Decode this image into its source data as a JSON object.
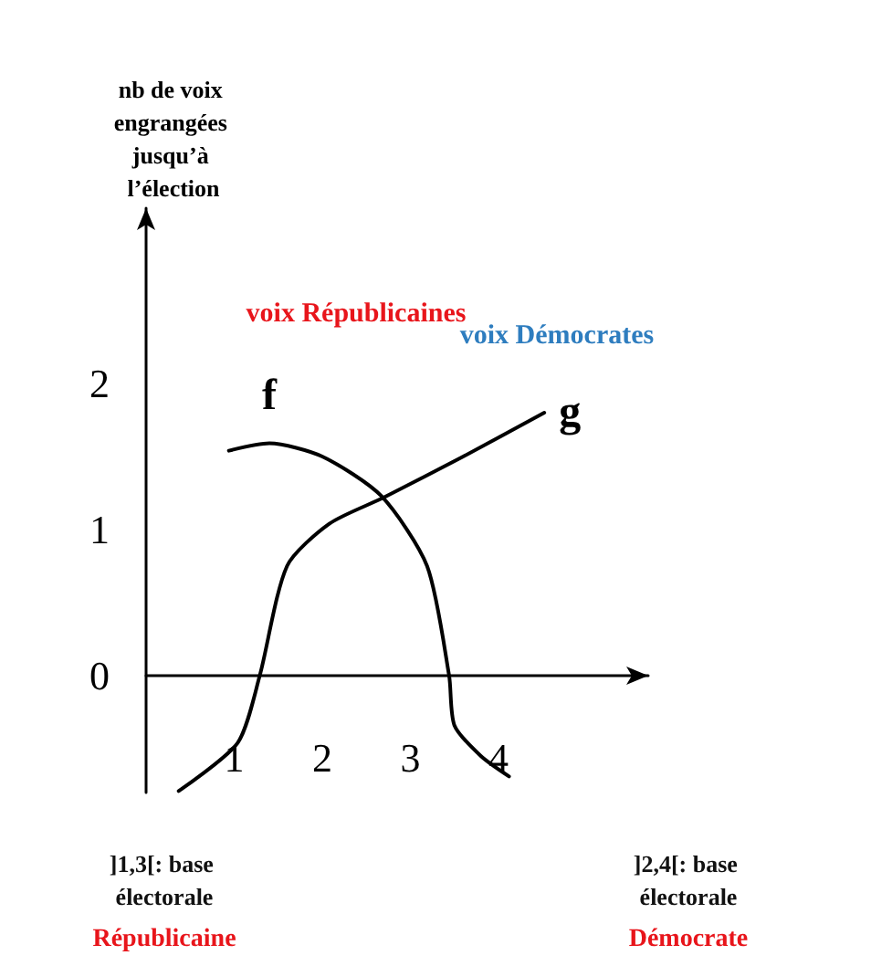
{
  "chart_data": {
    "type": "line",
    "ylabel": "nb de voix engrangées jusqu’à l’élection",
    "annotations": [
      "voix Républicaines",
      "voix Démocrates",
      "]1,3[: base électorale",
      "Républicaine",
      "]2,4[: base électorale",
      "Démocrate"
    ],
    "series": [
      {
        "name": "f",
        "color": "#000000",
        "x": [
          0.94,
          1.4,
          2.0,
          2.67,
          3.19,
          3.44,
          3.5,
          3.8,
          4.12
        ],
        "values": [
          1.54,
          1.59,
          1.5,
          1.23,
          0.75,
          0,
          -0.34,
          -0.55,
          -0.69
        ]
      },
      {
        "name": "g",
        "color": "#000000",
        "x": [
          0.37,
          1.04,
          1.29,
          1.6,
          2.08,
          2.7,
          3.6,
          4.52
        ],
        "values": [
          -0.79,
          -0.46,
          0,
          0.75,
          1.04,
          1.22,
          1.5,
          1.8
        ]
      }
    ],
    "xlim": [
      0,
      5.7
    ],
    "ylim": [
      -0.8,
      3.2
    ],
    "xticks": [
      1,
      2,
      3,
      4
    ],
    "yticks": [
      0,
      1,
      2
    ],
    "grid": false,
    "legend": false,
    "marker": "none",
    "line_style": "solid"
  }
}
